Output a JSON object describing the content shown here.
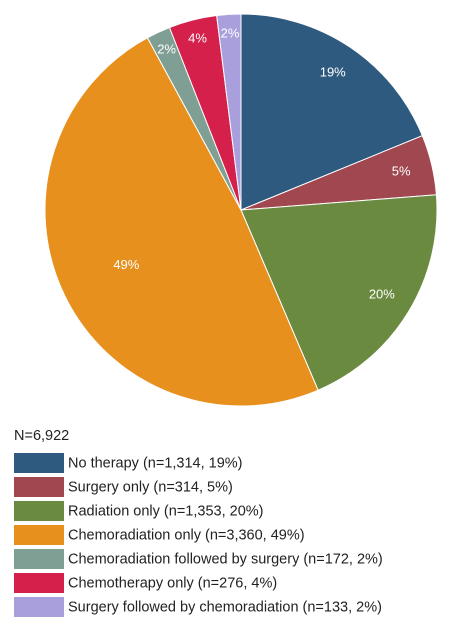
{
  "chart_data": {
    "type": "pie",
    "annotation": "N=6,922",
    "categories": [
      "No therapy (n=1,314, 19%)",
      "Surgery only (n=314, 5%)",
      "Radiation only (n=1,353, 20%)",
      "Chemoradiation only (n=3,360, 49%)",
      "Chemoradiation followed by surgery (n=172, 2%)",
      "Chemotherapy only (n=276, 4%)",
      "Surgery followed by chemoradiation (n=133, 2%)"
    ],
    "values": [
      19,
      5,
      20,
      49,
      2,
      4,
      2
    ],
    "value_labels": [
      "19%",
      "5%",
      "20%",
      "49%",
      "2%",
      "4%",
      "2%"
    ],
    "colors": [
      "#2f5a80",
      "#a0474f",
      "#6a8a3f",
      "#e8901e",
      "#7f9f94",
      "#d4204a",
      "#a99fdc"
    ],
    "legend": "bottom-left"
  }
}
